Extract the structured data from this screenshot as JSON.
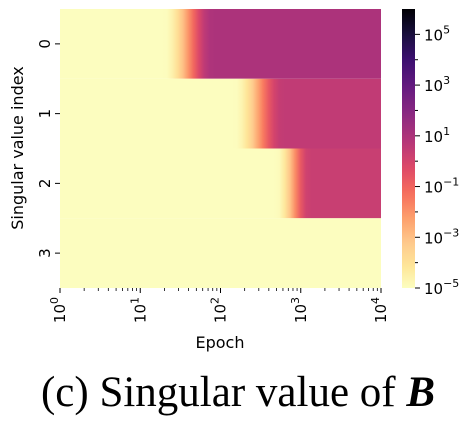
{
  "chart_data": {
    "type": "heatmap",
    "xlabel": "Epoch",
    "ylabel": "Singular value index",
    "x_scale": "log",
    "xlim": [
      1,
      10000
    ],
    "x_ticks": [
      {
        "value": 1,
        "base": "10",
        "exp": "0"
      },
      {
        "value": 10,
        "base": "10",
        "exp": "1"
      },
      {
        "value": 100,
        "base": "10",
        "exp": "2"
      },
      {
        "value": 1000,
        "base": "10",
        "exp": "3"
      },
      {
        "value": 10000,
        "base": "10",
        "exp": "4"
      }
    ],
    "rows": [
      "0",
      "1",
      "2",
      "3"
    ],
    "colorbar": {
      "scale": "log",
      "range": [
        1e-05,
        1000000
      ],
      "colormap": "magma_r",
      "ticks": [
        {
          "value": 1e-05,
          "base": "10",
          "exp": "−5"
        },
        {
          "value": 0.001,
          "base": "10",
          "exp": "−3"
        },
        {
          "value": 0.1,
          "base": "10",
          "exp": "−1"
        },
        {
          "value": 10,
          "base": "10",
          "exp": "1"
        },
        {
          "value": 1000,
          "base": "10",
          "exp": "3"
        },
        {
          "value": 100000,
          "base": "10",
          "exp": "5"
        }
      ]
    },
    "row_profiles": [
      {
        "row": "0",
        "transition_start_epoch": 20,
        "transition_end_epoch": 80,
        "plateau_value": 10
      },
      {
        "row": "1",
        "transition_start_epoch": 150,
        "transition_end_epoch": 600,
        "plateau_value": 3
      },
      {
        "row": "2",
        "transition_start_epoch": 500,
        "transition_end_epoch": 1300,
        "plateau_value": 2
      },
      {
        "row": "3",
        "transition_start_epoch": null,
        "transition_end_epoch": null,
        "plateau_value": 1e-05
      }
    ]
  },
  "caption": {
    "prefix": "(c) Singular value of ",
    "symbol": "B"
  }
}
